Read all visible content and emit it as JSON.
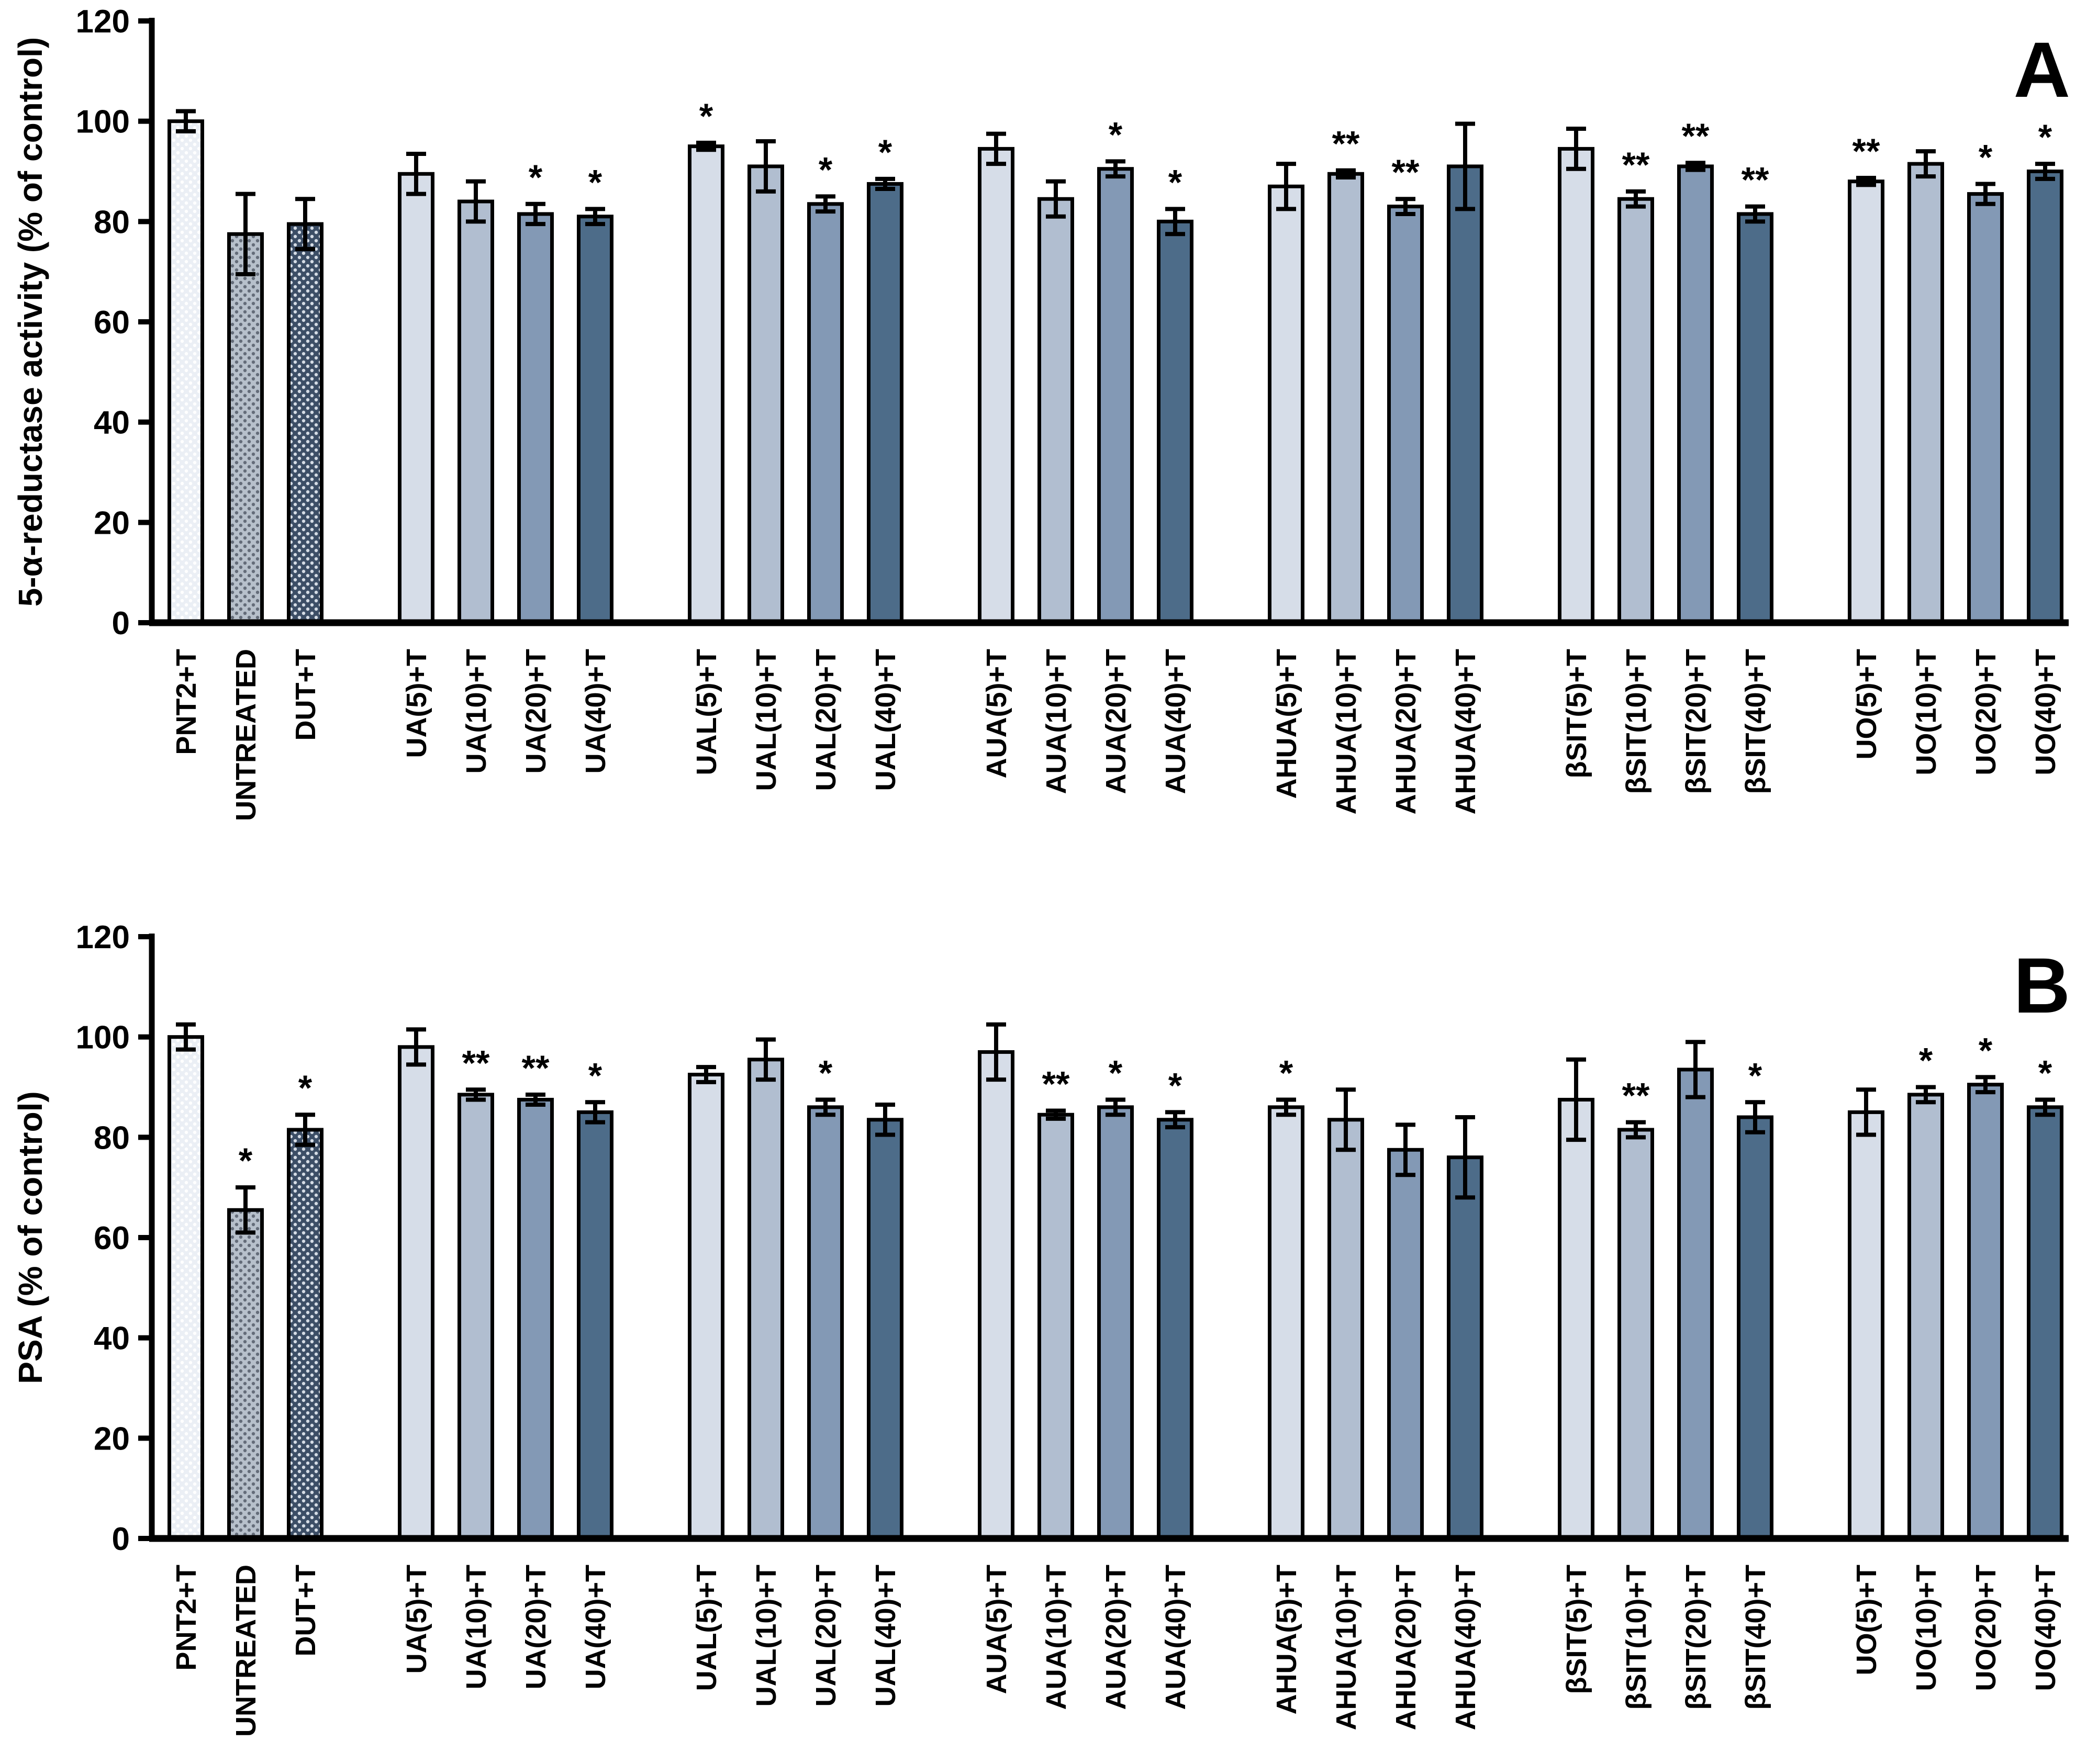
{
  "figure": {
    "description": "Two-panel grouped bar chart with error bars and significance asterisks",
    "colors": {
      "conc5": "#d6dde8",
      "conc10": "#b1bed0",
      "conc20": "#8399b5",
      "conc40": "#4d6c89",
      "dot_light_base": "#ebeff5",
      "dot_light_dot": "#ffffff",
      "dot_medium_base": "#b7c0cb",
      "dot_medium_dot": "#646c79",
      "dot_dark_base": "#3c4e66",
      "dot_dark_dot": "#d5dce5",
      "outline": "#000000",
      "significance": "#3d3d3d"
    }
  },
  "chart_data": [
    {
      "type": "bar",
      "panel_letter": "A",
      "ylabel": "5-α-reductase activity (% of control)",
      "xlabel": "",
      "ylim": [
        0,
        120
      ],
      "yticks": [
        0,
        20,
        40,
        60,
        80,
        100,
        120
      ],
      "grid": false,
      "legend": "none",
      "clusters": [
        3,
        4,
        4,
        4,
        4,
        4,
        4
      ],
      "categories": [
        "PNT2+T",
        "UNTREATED",
        "DUT+T",
        "UA(5)+T",
        "UA(10)+T",
        "UA(20)+T",
        "UA(40)+T",
        "UAL(5)+T",
        "UAL(10)+T",
        "UAL(20)+T",
        "UAL(40)+T",
        "AUA(5)+T",
        "AUA(10)+T",
        "AUA(20)+T",
        "AUA(40)+T",
        "AHUA(5)+T",
        "AHUA(10)+T",
        "AHUA(20)+T",
        "AHUA(40)+T",
        "βSIT(5)+T",
        "βSIT(10)+T",
        "βSIT(20)+T",
        "βSIT(40)+T",
        "UO(5)+T",
        "UO(10)+T",
        "UO(20)+T",
        "UO(40)+T"
      ],
      "values": [
        100,
        77.5,
        79.5,
        89.5,
        84,
        81.5,
        81,
        95,
        91,
        83.5,
        87.5,
        94.5,
        84.5,
        90.5,
        80,
        87,
        89.5,
        83,
        91,
        94.5,
        84.5,
        91,
        81.5,
        88,
        91.5,
        85.5,
        90
      ],
      "errors": [
        2,
        8,
        5,
        4,
        4,
        2,
        1.5,
        0.7,
        5,
        1.5,
        1,
        3,
        3.5,
        1.5,
        2.5,
        4.5,
        0.7,
        1.5,
        8.5,
        4,
        1.5,
        0.7,
        1.5,
        0.7,
        2.5,
        2,
        1.5
      ],
      "significance": [
        "",
        "",
        "",
        "",
        "",
        "*",
        "*",
        "*",
        "",
        "*",
        "*",
        "",
        "",
        "*",
        "*",
        "",
        "**",
        "**",
        "",
        "",
        "**",
        "**",
        "**",
        "**",
        "",
        "*",
        "*"
      ],
      "bar_styles": [
        "dot-light",
        "dot-medium",
        "dot-dark",
        "c5",
        "c10",
        "c20",
        "c40",
        "c5",
        "c10",
        "c20",
        "c40",
        "c5",
        "c10",
        "c20",
        "c40",
        "c5",
        "c10",
        "c20",
        "c40",
        "c5",
        "c10",
        "c20",
        "c40",
        "c5",
        "c10",
        "c20",
        "c40"
      ]
    },
    {
      "type": "bar",
      "panel_letter": "B",
      "ylabel": "PSA (% of control)",
      "xlabel": "",
      "ylim": [
        0,
        120
      ],
      "yticks": [
        0,
        20,
        40,
        60,
        80,
        100,
        120
      ],
      "grid": false,
      "legend": "none",
      "clusters": [
        3,
        4,
        4,
        4,
        4,
        4,
        4
      ],
      "categories": [
        "PNT2+T",
        "UNTREATED",
        "DUT+T",
        "UA(5)+T",
        "UA(10)+T",
        "UA(20)+T",
        "UA(40)+T",
        "UAL(5)+T",
        "UAL(10)+T",
        "UAL(20)+T",
        "UAL(40)+T",
        "AUA(5)+T",
        "AUA(10)+T",
        "AUA(20)+T",
        "AUA(40)+T",
        "AHUA(5)+T",
        "AHUA(10)+T",
        "AHUA(20)+T",
        "AHUA(40)+T",
        "βSIT(5)+T",
        "βSIT(10)+T",
        "βSIT(20)+T",
        "βSIT(40)+T",
        "UO(5)+T",
        "UO(10)+T",
        "UO(20)+T",
        "UO(40)+T"
      ],
      "values": [
        100,
        65.5,
        81.5,
        98,
        88.5,
        87.5,
        85,
        92.5,
        95.5,
        86,
        83.5,
        97,
        84.5,
        86,
        83.5,
        86,
        83.5,
        77.5,
        76,
        87.5,
        81.5,
        93.5,
        84,
        85,
        88.5,
        90.5,
        86
      ],
      "errors": [
        2.5,
        4.5,
        3,
        3.5,
        1,
        1,
        2,
        1.5,
        4,
        1.5,
        3,
        5.5,
        0.8,
        1.5,
        1.5,
        1.5,
        6,
        5,
        8,
        8,
        1.5,
        5.5,
        3,
        4.5,
        1.5,
        1.5,
        1.5
      ],
      "significance": [
        "",
        "*",
        "*",
        "",
        "**",
        "**",
        "*",
        "",
        "",
        "*",
        "",
        "",
        "**",
        "*",
        "*",
        "*",
        "",
        "",
        "",
        "",
        "**",
        "",
        "*",
        "",
        "*",
        "*",
        "*"
      ],
      "bar_styles": [
        "dot-light",
        "dot-medium",
        "dot-dark",
        "c5",
        "c10",
        "c20",
        "c40",
        "c5",
        "c10",
        "c20",
        "c40",
        "c5",
        "c10",
        "c20",
        "c40",
        "c5",
        "c10",
        "c20",
        "c40",
        "c5",
        "c10",
        "c20",
        "c40",
        "c5",
        "c10",
        "c20",
        "c40"
      ]
    }
  ]
}
